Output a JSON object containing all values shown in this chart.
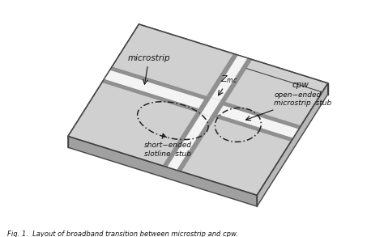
{
  "bg_color": "#ffffff",
  "plate_color": "#d0d0d0",
  "plate_edge_color": "#444444",
  "plate_side_top": "#b8b8b8",
  "plate_side_bot": "#a0a0a0",
  "strip_gray": "#909090",
  "strip_light": "#e0e0e0",
  "strip_white": "#f4f4f4",
  "text_color": "#111111",
  "caption": "Fig. 1.  Layout of broadband transition between microstrip and cpw.",
  "labels": {
    "microstrip": "microstrip",
    "cpw": "cpw",
    "Zmc": "$Z_{mc}$",
    "open_ended_1": "open−ended",
    "open_ended_2": "microstrip  stub",
    "short_ended_1": "short−ended",
    "short_ended_2": "slotline  stub"
  }
}
